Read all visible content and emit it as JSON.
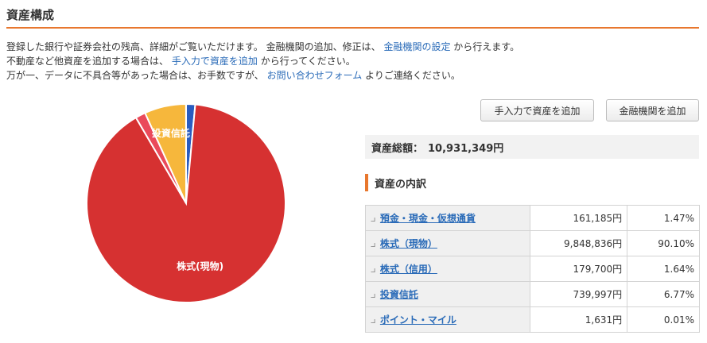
{
  "page": {
    "title": "資産構成",
    "desc": {
      "line1_pre": "登録した銀行や証券会社の残高、詳細がご覧いただけます。 金融機関の追加、修正は、",
      "line1_link": "金融機関の設定",
      "line1_post": "から行えます。",
      "line2_pre": "不動産など他資産を追加する場合は、",
      "line2_link": "手入力で資産を追加",
      "line2_post": "から行ってください。",
      "line3_pre": "万が一、データに不具合等があった場合は、お手数ですが、",
      "line3_link": "お問い合わせフォーム",
      "line3_post": "よりご連絡ください。"
    }
  },
  "buttons": {
    "manual_add": "手入力で資産を追加",
    "institution_add": "金融機関を追加"
  },
  "total": {
    "label": "資産総額：",
    "value": "10,931,349円"
  },
  "breakdown": {
    "heading": "資産の内訳",
    "rows": [
      {
        "name": "預金・現金・仮想通貨",
        "amount": "161,185円",
        "percent": "1.47%"
      },
      {
        "name": "株式（現物）",
        "amount": "9,848,836円",
        "percent": "90.10%"
      },
      {
        "name": "株式（信用）",
        "amount": "179,700円",
        "percent": "1.64%"
      },
      {
        "name": "投資信託",
        "amount": "739,997円",
        "percent": "6.77%"
      },
      {
        "name": "ポイント・マイル",
        "amount": "1,631円",
        "percent": "0.01%"
      }
    ]
  },
  "chart_data": {
    "type": "pie",
    "slices": [
      {
        "label": "預金・現金・仮想通貨",
        "value": 1.47,
        "color": "#2a5cbf",
        "shown_label": ""
      },
      {
        "label": "株式(現物)",
        "value": 90.1,
        "color": "#d63131",
        "shown_label": "株式(現物)"
      },
      {
        "label": "株式(信用)",
        "value": 1.64,
        "color": "#ea4a5a",
        "shown_label": ""
      },
      {
        "label": "投資信託",
        "value": 6.77,
        "color": "#f6b73c",
        "shown_label": "投資信託"
      },
      {
        "label": "ポイント・マイル",
        "value": 0.01,
        "color": "#7cc243",
        "shown_label": ""
      }
    ]
  }
}
